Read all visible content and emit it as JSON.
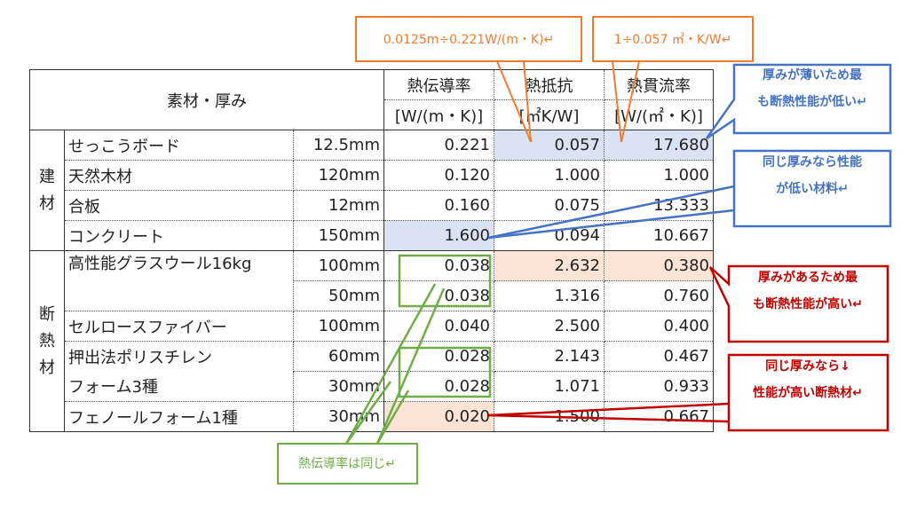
{
  "table": {
    "header": {
      "material": "素材・厚み",
      "conductivity": "熱伝導率",
      "conductivity_unit": "[W/(m・K)]",
      "resistance": "熱抵抗",
      "resistance_unit": "[㎡K/W]",
      "transmittance": "熱貫流率",
      "transmittance_unit": "[W/(㎡・K)]"
    },
    "groups": [
      "建\n材",
      "断\n熱\n材"
    ],
    "rows": [
      {
        "name": "せっこうボード",
        "thickness": "12.5mm",
        "conductivity": "0.221",
        "resistance": "0.057",
        "transmittance": "17.680"
      },
      {
        "name": "天然木材",
        "thickness": "120mm",
        "conductivity": "0.120",
        "resistance": "1.000",
        "transmittance": "1.000"
      },
      {
        "name": "合板",
        "thickness": "12mm",
        "conductivity": "0.160",
        "resistance": "0.075",
        "transmittance": "13.333"
      },
      {
        "name": "コンクリート",
        "thickness": "150mm",
        "conductivity": "1.600",
        "resistance": "0.094",
        "transmittance": "10.667"
      },
      {
        "name": "高性能グラスウール16kg",
        "thickness": "100mm",
        "conductivity": "0.038",
        "resistance": "2.632",
        "transmittance": "0.380"
      },
      {
        "thickness": "50mm",
        "conductivity": "0.038",
        "resistance": "1.316",
        "transmittance": "0.760"
      },
      {
        "name": "セルロースファイバー",
        "thickness": "100mm",
        "conductivity": "0.040",
        "resistance": "2.500",
        "transmittance": "0.400"
      },
      {
        "name": "押出法ポリスチレン",
        "thickness": "60mm",
        "conductivity": "0.028",
        "resistance": "2.143",
        "transmittance": "0.467"
      },
      {
        "name": "フォーム3種",
        "thickness": "30mm",
        "conductivity": "0.028",
        "resistance": "1.071",
        "transmittance": "0.933"
      },
      {
        "name": "フェノールフォーム1種",
        "thickness": "30mm",
        "conductivity": "0.020",
        "resistance": "1.500",
        "transmittance": "0.667"
      }
    ]
  },
  "callouts": [
    {
      "lines": [
        "0.0125m÷0.221W/(m・K)↵"
      ]
    },
    {
      "lines": [
        "1÷0.057 ㎡・K/W↵"
      ]
    },
    {
      "lines": [
        "厚みが薄いため最",
        "も断熱性能が低い↵"
      ]
    },
    {
      "lines": [
        "同じ厚みなら性能",
        "が低い材料↵"
      ]
    },
    {
      "lines": [
        "厚みがあるため最",
        "も断熱性能が高い↵"
      ]
    },
    {
      "lines": [
        "同じ厚みなら↓",
        "性能が高い断熱材↵"
      ]
    },
    {
      "lines": [
        "熱伝導率は同じ↵"
      ]
    }
  ]
}
